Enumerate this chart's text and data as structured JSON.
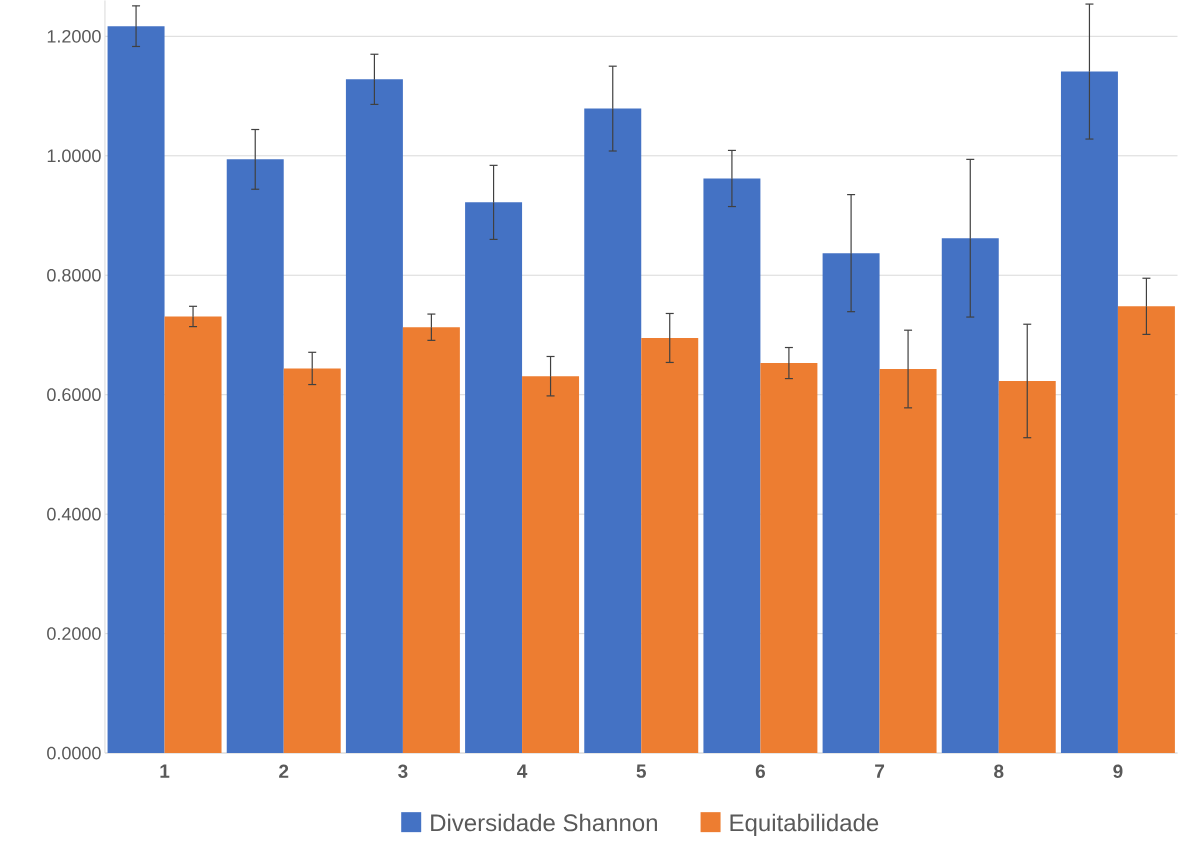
{
  "chart_data": {
    "type": "bar",
    "categories": [
      "1",
      "2",
      "3",
      "4",
      "5",
      "6",
      "7",
      "8",
      "9"
    ],
    "series": [
      {
        "name": "Diversidade Shannon",
        "color": "#4472c4",
        "values": [
          1.217,
          0.994,
          1.128,
          0.922,
          1.079,
          0.962,
          0.837,
          0.862,
          1.141
        ],
        "errors": [
          0.034,
          0.05,
          0.042,
          0.062,
          0.071,
          0.047,
          0.098,
          0.132,
          0.113
        ]
      },
      {
        "name": "Equitabilidade",
        "color": "#ed7d31",
        "values": [
          0.731,
          0.644,
          0.713,
          0.631,
          0.695,
          0.653,
          0.643,
          0.623,
          0.748
        ],
        "errors": [
          0.017,
          0.027,
          0.022,
          0.033,
          0.041,
          0.026,
          0.065,
          0.095,
          0.047
        ]
      }
    ],
    "ylim": [
      0,
      1.26
    ],
    "yticks": [
      {
        "value": 0,
        "label": "0.0000"
      },
      {
        "value": 0.2,
        "label": "0.2000"
      },
      {
        "value": 0.4,
        "label": "0.4000"
      },
      {
        "value": 0.6,
        "label": "0.6000"
      },
      {
        "value": 0.8,
        "label": "0.8000"
      },
      {
        "value": 1.0,
        "label": "1.0000"
      },
      {
        "value": 1.2,
        "label": "1.2000"
      }
    ],
    "grid": "y",
    "legend": "bottom"
  }
}
